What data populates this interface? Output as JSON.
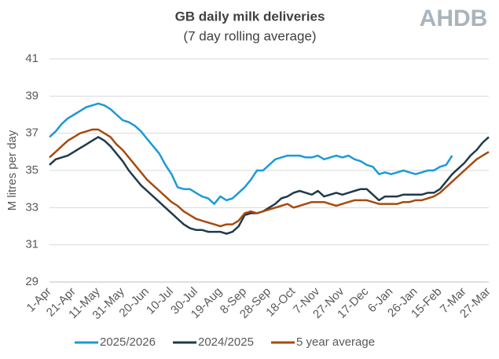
{
  "chart_data": {
    "type": "line",
    "title": "GB daily milk deliveries",
    "subtitle": "(7 day rolling average)",
    "logo": "AHDB",
    "y_label": "M litres per day",
    "categories": [
      "1-Apr",
      null,
      null,
      null,
      "21-Apr",
      null,
      null,
      null,
      "11-May",
      null,
      null,
      null,
      "31-May",
      null,
      null,
      null,
      "20-Jun",
      null,
      null,
      null,
      "10-Jul",
      null,
      null,
      null,
      "30-Jul",
      null,
      null,
      null,
      "19-Aug",
      null,
      null,
      null,
      "8-Sep",
      null,
      null,
      null,
      "28-Sep",
      null,
      null,
      null,
      "18-Oct",
      null,
      null,
      null,
      "7-Nov",
      null,
      null,
      null,
      "27-Nov",
      null,
      null,
      null,
      "17-Dec",
      null,
      null,
      null,
      "6-Jan",
      null,
      null,
      null,
      "26-Jan",
      null,
      null,
      null,
      "15-Feb",
      null,
      null,
      null,
      "7-Mar",
      null,
      null,
      null,
      "27-Mar"
    ],
    "series": [
      {
        "name": "2025/2026",
        "color": "#1c9ad6",
        "values": [
          36.8,
          37.1,
          37.5,
          37.8,
          38.0,
          38.2,
          38.4,
          38.5,
          38.6,
          38.5,
          38.3,
          38.0,
          37.7,
          37.6,
          37.4,
          37.1,
          36.7,
          36.3,
          35.9,
          35.3,
          34.8,
          34.1,
          34.0,
          34.0,
          33.8,
          33.6,
          33.5,
          33.2,
          33.6,
          33.4,
          33.5,
          33.8,
          34.1,
          34.5,
          35.0,
          35.0,
          35.3,
          35.6,
          35.7,
          35.8,
          35.8,
          35.8,
          35.7,
          35.7,
          35.8,
          35.6,
          35.7,
          35.8,
          35.7,
          35.8,
          35.6,
          35.5,
          35.3,
          35.2,
          34.8,
          34.9,
          34.8,
          34.9,
          35.0,
          34.9,
          34.8,
          34.9,
          35.0,
          35.0,
          35.2,
          35.3,
          35.8,
          null,
          null,
          null,
          null,
          null,
          null
        ]
      },
      {
        "name": "2024/2025",
        "color": "#1f3a4a",
        "values": [
          35.3,
          35.6,
          35.7,
          35.8,
          36.0,
          36.2,
          36.4,
          36.6,
          36.8,
          36.6,
          36.3,
          35.9,
          35.5,
          35.0,
          34.6,
          34.2,
          33.9,
          33.6,
          33.3,
          33.0,
          32.7,
          32.4,
          32.1,
          31.9,
          31.8,
          31.8,
          31.7,
          31.7,
          31.7,
          31.6,
          31.7,
          32.0,
          32.6,
          32.7,
          32.7,
          32.8,
          33.0,
          33.2,
          33.5,
          33.6,
          33.8,
          33.9,
          33.8,
          33.7,
          33.9,
          33.6,
          33.7,
          33.8,
          33.7,
          33.8,
          33.9,
          34.0,
          34.0,
          33.7,
          33.4,
          33.6,
          33.6,
          33.6,
          33.7,
          33.7,
          33.7,
          33.7,
          33.8,
          33.8,
          34.0,
          34.4,
          34.8,
          35.1,
          35.4,
          35.8,
          36.1,
          36.5,
          36.8
        ]
      },
      {
        "name": "5 year average",
        "color": "#a64b0f",
        "values": [
          35.7,
          36.0,
          36.3,
          36.6,
          36.8,
          37.0,
          37.1,
          37.2,
          37.2,
          37.0,
          36.8,
          36.4,
          36.1,
          35.7,
          35.3,
          34.9,
          34.5,
          34.2,
          33.9,
          33.6,
          33.3,
          33.1,
          32.8,
          32.6,
          32.4,
          32.3,
          32.2,
          32.1,
          32.0,
          32.1,
          32.1,
          32.3,
          32.7,
          32.8,
          32.7,
          32.8,
          32.9,
          33.0,
          33.1,
          33.2,
          33.0,
          33.1,
          33.2,
          33.3,
          33.3,
          33.3,
          33.2,
          33.1,
          33.2,
          33.3,
          33.4,
          33.4,
          33.4,
          33.3,
          33.2,
          33.2,
          33.2,
          33.2,
          33.3,
          33.3,
          33.4,
          33.4,
          33.5,
          33.6,
          33.8,
          34.1,
          34.4,
          34.7,
          35.0,
          35.3,
          35.6,
          35.8,
          36.0
        ]
      }
    ],
    "ylim": [
      29,
      41
    ],
    "yticks": [
      29,
      31,
      33,
      35,
      37,
      39,
      41
    ],
    "grid": true,
    "legend": "bottom"
  }
}
